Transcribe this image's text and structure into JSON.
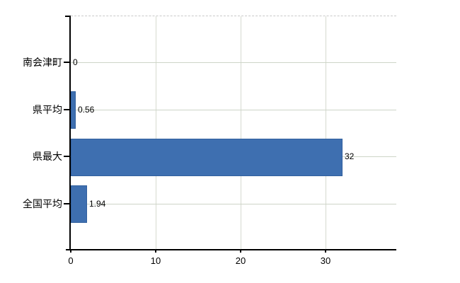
{
  "chart_data": {
    "type": "bar",
    "orientation": "horizontal",
    "title": "",
    "xlabel": "",
    "ylabel": "",
    "categories": [
      "南会津町",
      "県平均",
      "県最大",
      "全国平均"
    ],
    "values": [
      0,
      0.56,
      32,
      1.94
    ],
    "value_labels": [
      "0",
      "0.56",
      "32",
      "1.94"
    ],
    "x_ticks": [
      0,
      10,
      20,
      30
    ],
    "x_tick_labels": [
      "0",
      "10",
      "20",
      "30"
    ],
    "xlim": [
      0,
      38.33
    ],
    "grid": true,
    "legend": false,
    "colors": {
      "bar_fill": "#3e6fb0",
      "bar_border": "#32609e",
      "horizontal_gridline": "#cdd4c7",
      "vertical_gridline": "#d6dad0",
      "top_border_dashed": "#c9c9c9",
      "axis": "#000000",
      "text": "#000000",
      "background": "#ffffff"
    }
  }
}
